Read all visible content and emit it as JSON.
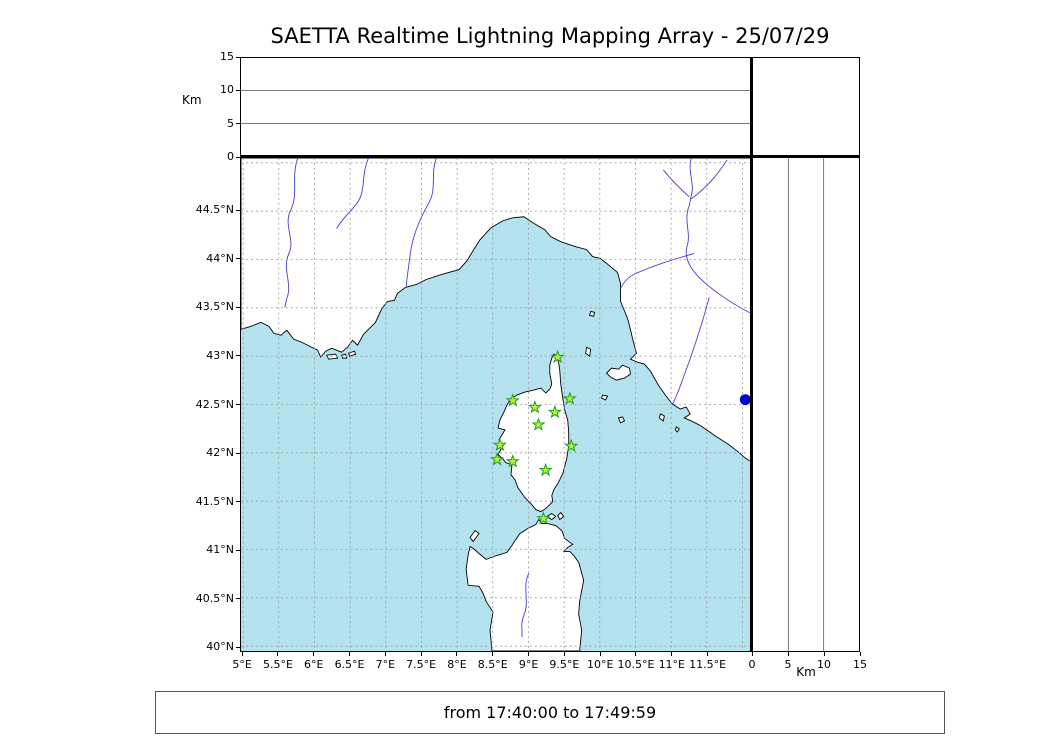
{
  "title": "SAETTA Realtime Lightning Mapping Array - 25/07/29",
  "footer": {
    "time_range": "from 17:40:00 to 17:49:59"
  },
  "chart_data": {
    "type": "scatter",
    "title": "SAETTA Realtime Lightning Mapping Array - 25/07/29",
    "map": {
      "lon_range": [
        4.97,
        12.12
      ],
      "lat_range": [
        39.95,
        45.05
      ],
      "grid_lons": [
        5,
        5.5,
        6,
        6.5,
        7,
        7.5,
        8,
        8.5,
        9,
        9.5,
        10,
        10.5,
        11,
        11.5,
        12
      ],
      "grid_lats": [
        40,
        40.5,
        41,
        41.5,
        42,
        42.5,
        43,
        43.5,
        44,
        44.5,
        45
      ],
      "lon_tick_values": [
        5,
        5.5,
        6,
        6.5,
        7,
        7.5,
        8,
        8.5,
        9,
        9.5,
        10,
        10.5,
        11,
        11.5
      ],
      "lon_tick_labels": [
        "5°E",
        "5.5°E",
        "6°E",
        "6.5°E",
        "7°E",
        "7.5°E",
        "8°E",
        "8.5°E",
        "9°E",
        "9.5°E",
        "10°E",
        "10.5°E",
        "11°E",
        "11.5°E"
      ],
      "lat_tick_values": [
        44.5,
        44,
        43.5,
        43,
        42.5,
        42,
        41.5,
        41,
        40.5,
        40
      ],
      "lat_tick_labels": [
        "44.5°N",
        "44°N",
        "43.5°N",
        "43°N",
        "42.5°N",
        "42°N",
        "41.5°N",
        "41°N",
        "40.5°N",
        "40°N"
      ],
      "sea_color": "#b4e2ef",
      "land_color": "#ffffff",
      "coast_color": "#000000",
      "river_color": "#4040cc",
      "grid_color": "#9a9a9a"
    },
    "altitude_axis": {
      "label": "Km",
      "range": [
        0,
        15
      ],
      "tick_values": [
        0,
        5,
        10,
        15
      ],
      "gridlines": [
        5,
        10
      ]
    },
    "stations": {
      "marker": "star",
      "fill": "#b8f241",
      "stroke": "#1f9e1f",
      "points": [
        {
          "lon": 9.41,
          "lat": 42.99
        },
        {
          "lon": 8.78,
          "lat": 42.54
        },
        {
          "lon": 9.09,
          "lat": 42.47
        },
        {
          "lon": 9.37,
          "lat": 42.42
        },
        {
          "lon": 9.58,
          "lat": 42.56
        },
        {
          "lon": 9.14,
          "lat": 42.29
        },
        {
          "lon": 8.6,
          "lat": 42.08
        },
        {
          "lon": 9.6,
          "lat": 42.07
        },
        {
          "lon": 8.56,
          "lat": 41.93
        },
        {
          "lon": 8.78,
          "lat": 41.91
        },
        {
          "lon": 9.24,
          "lat": 41.82
        },
        {
          "lon": 9.21,
          "lat": 41.32
        }
      ]
    },
    "events": {
      "color": "#0000cc",
      "points": [
        {
          "lon": 12.04,
          "lat": 42.55
        }
      ]
    }
  }
}
